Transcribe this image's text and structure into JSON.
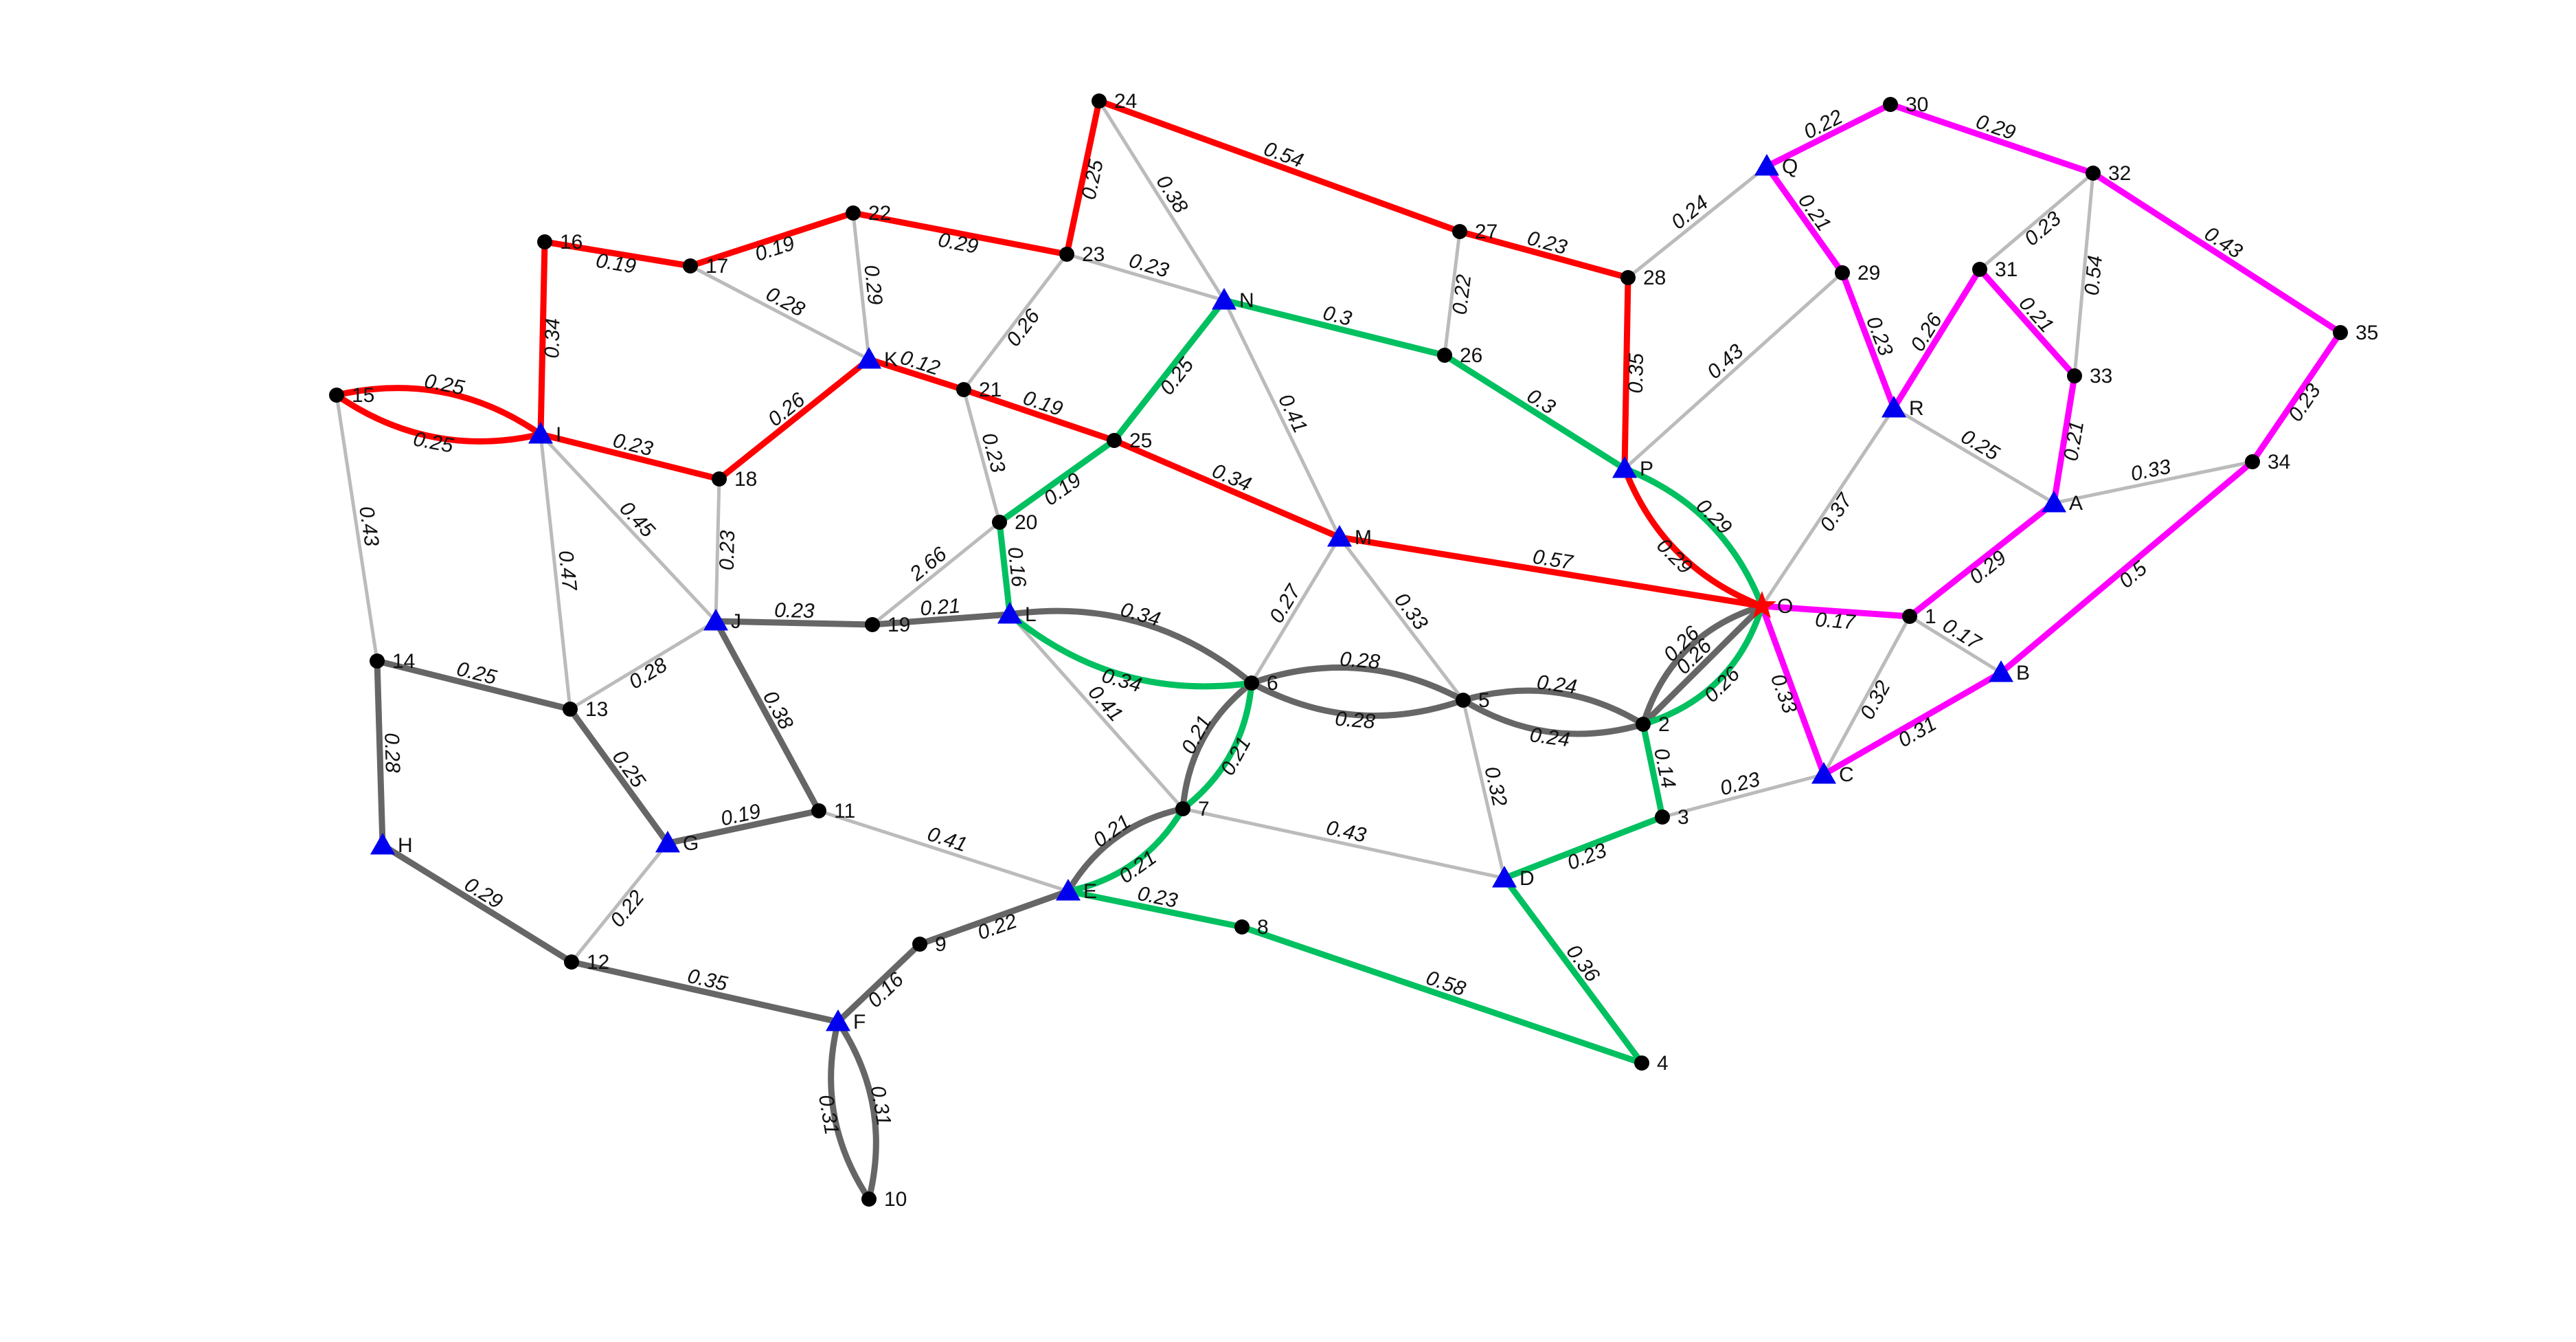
{
  "colors": {
    "background": "#ffffff",
    "edge_light": "#bbbbbb",
    "edge_dark": "#666666",
    "edge_red": "#ff0000",
    "edge_green": "#00c060",
    "edge_magenta": "#ff00ff",
    "node_dot": "#000000",
    "node_triangle": "#0000ee",
    "node_star": "#ff0000"
  },
  "nodes": [
    {
      "id": "24",
      "shape": "dot"
    },
    {
      "id": "27",
      "shape": "dot"
    },
    {
      "id": "28",
      "shape": "dot"
    },
    {
      "id": "23",
      "shape": "dot"
    },
    {
      "id": "22",
      "shape": "dot"
    },
    {
      "id": "17",
      "shape": "dot"
    },
    {
      "id": "16",
      "shape": "dot"
    },
    {
      "id": "15",
      "shape": "dot"
    },
    {
      "id": "I",
      "shape": "triangle"
    },
    {
      "id": "K",
      "shape": "triangle"
    },
    {
      "id": "21",
      "shape": "dot"
    },
    {
      "id": "18",
      "shape": "dot"
    },
    {
      "id": "N",
      "shape": "triangle"
    },
    {
      "id": "26",
      "shape": "dot"
    },
    {
      "id": "25",
      "shape": "dot"
    },
    {
      "id": "20",
      "shape": "dot"
    },
    {
      "id": "M",
      "shape": "triangle"
    },
    {
      "id": "P",
      "shape": "triangle"
    },
    {
      "id": "O",
      "shape": "star"
    },
    {
      "id": "Q",
      "shape": "triangle"
    },
    {
      "id": "30",
      "shape": "dot"
    },
    {
      "id": "32",
      "shape": "dot"
    },
    {
      "id": "29",
      "shape": "dot"
    },
    {
      "id": "31",
      "shape": "dot"
    },
    {
      "id": "33",
      "shape": "dot"
    },
    {
      "id": "R",
      "shape": "triangle"
    },
    {
      "id": "35",
      "shape": "dot"
    },
    {
      "id": "34",
      "shape": "dot"
    },
    {
      "id": "A",
      "shape": "triangle"
    },
    {
      "id": "1",
      "shape": "dot"
    },
    {
      "id": "B",
      "shape": "triangle"
    },
    {
      "id": "C",
      "shape": "triangle"
    },
    {
      "id": "J",
      "shape": "triangle"
    },
    {
      "id": "19",
      "shape": "dot"
    },
    {
      "id": "L",
      "shape": "triangle"
    },
    {
      "id": "14",
      "shape": "dot"
    },
    {
      "id": "13",
      "shape": "dot"
    },
    {
      "id": "6",
      "shape": "dot"
    },
    {
      "id": "5",
      "shape": "dot"
    },
    {
      "id": "2",
      "shape": "dot"
    },
    {
      "id": "3",
      "shape": "dot"
    },
    {
      "id": "11",
      "shape": "dot"
    },
    {
      "id": "G",
      "shape": "triangle"
    },
    {
      "id": "H",
      "shape": "triangle"
    },
    {
      "id": "7",
      "shape": "dot"
    },
    {
      "id": "E",
      "shape": "triangle"
    },
    {
      "id": "D",
      "shape": "triangle"
    },
    {
      "id": "8",
      "shape": "dot"
    },
    {
      "id": "9",
      "shape": "dot"
    },
    {
      "id": "12",
      "shape": "dot"
    },
    {
      "id": "F",
      "shape": "triangle"
    },
    {
      "id": "4",
      "shape": "dot"
    },
    {
      "id": "10",
      "shape": "dot"
    }
  ],
  "edges": [
    {
      "a": "24",
      "b": "27",
      "label": "0.54",
      "color": "red"
    },
    {
      "a": "27",
      "b": "28",
      "label": "0.23",
      "color": "red"
    },
    {
      "a": "28",
      "b": "P",
      "label": "0.35",
      "color": "red"
    },
    {
      "a": "24",
      "b": "23",
      "label": "0.25",
      "color": "red"
    },
    {
      "a": "23",
      "b": "22",
      "label": "0.29",
      "color": "red"
    },
    {
      "a": "22",
      "b": "17",
      "label": "0.19",
      "color": "red"
    },
    {
      "a": "17",
      "b": "16",
      "label": "0.19",
      "color": "red"
    },
    {
      "a": "16",
      "b": "I",
      "label": "0.34",
      "color": "red"
    },
    {
      "a": "15",
      "b": "I",
      "label": "0.25",
      "color": "red",
      "curve": 1
    },
    {
      "a": "15",
      "b": "I",
      "label": "0.25",
      "color": "red",
      "curve": -1
    },
    {
      "a": "I",
      "b": "18",
      "label": "0.23",
      "color": "red"
    },
    {
      "a": "18",
      "b": "K",
      "label": "0.26",
      "color": "red"
    },
    {
      "a": "K",
      "b": "21",
      "label": "0.12",
      "color": "red"
    },
    {
      "a": "21",
      "b": "25",
      "label": "0.19",
      "color": "red"
    },
    {
      "a": "25",
      "b": "M",
      "label": "0.34",
      "color": "red"
    },
    {
      "a": "M",
      "b": "O",
      "label": "0.57",
      "color": "red"
    },
    {
      "a": "P",
      "b": "O",
      "label": "0.29",
      "color": "red",
      "curve": 1
    },
    {
      "a": "P",
      "b": "O",
      "label": "0.29",
      "color": "green",
      "curve": -1
    },
    {
      "a": "24",
      "b": "N",
      "label": "0.38",
      "color": "light"
    },
    {
      "a": "27",
      "b": "26",
      "label": "0.22",
      "color": "light"
    },
    {
      "a": "23",
      "b": "N",
      "label": "0.23",
      "color": "light"
    },
    {
      "a": "22",
      "b": "K",
      "label": "0.29",
      "color": "light"
    },
    {
      "a": "17",
      "b": "K",
      "label": "0.28",
      "color": "light"
    },
    {
      "a": "23",
      "b": "21",
      "label": "0.26",
      "color": "light"
    },
    {
      "a": "21",
      "b": "20",
      "label": "0.23",
      "color": "light"
    },
    {
      "a": "N",
      "b": "26",
      "label": "0.3",
      "color": "green"
    },
    {
      "a": "26",
      "b": "P",
      "label": "0.3",
      "color": "green"
    },
    {
      "a": "N",
      "b": "25",
      "label": "0.25",
      "color": "green"
    },
    {
      "a": "25",
      "b": "20",
      "label": "0.19",
      "color": "green"
    },
    {
      "a": "20",
      "b": "L",
      "label": "0.16",
      "color": "green"
    },
    {
      "a": "N",
      "b": "M",
      "label": "0.41",
      "color": "light"
    },
    {
      "a": "28",
      "b": "Q",
      "label": "0.24",
      "color": "light"
    },
    {
      "a": "P",
      "b": "29",
      "label": "0.43",
      "color": "light"
    },
    {
      "a": "Q",
      "b": "30",
      "label": "0.22",
      "color": "magenta"
    },
    {
      "a": "30",
      "b": "32",
      "label": "0.29",
      "color": "magenta"
    },
    {
      "a": "32",
      "b": "35",
      "label": "0.43",
      "color": "magenta"
    },
    {
      "a": "35",
      "b": "34",
      "label": "0.23",
      "color": "magenta"
    },
    {
      "a": "34",
      "b": "B",
      "label": "0.5",
      "color": "magenta"
    },
    {
      "a": "B",
      "b": "C",
      "label": "0.31",
      "color": "magenta"
    },
    {
      "a": "C",
      "b": "O",
      "label": "0.33",
      "color": "magenta"
    },
    {
      "a": "Q",
      "b": "29",
      "label": "0.21",
      "color": "magenta"
    },
    {
      "a": "29",
      "b": "R",
      "label": "0.23",
      "color": "magenta"
    },
    {
      "a": "R",
      "b": "31",
      "label": "0.26",
      "color": "magenta"
    },
    {
      "a": "31",
      "b": "33",
      "label": "0.21",
      "color": "magenta"
    },
    {
      "a": "33",
      "b": "A",
      "label": "0.21",
      "color": "magenta"
    },
    {
      "a": "A",
      "b": "1",
      "label": "0.29",
      "color": "magenta"
    },
    {
      "a": "1",
      "b": "O",
      "label": "0.17",
      "color": "magenta"
    },
    {
      "a": "32",
      "b": "31",
      "label": "0.23",
      "color": "light"
    },
    {
      "a": "32",
      "b": "33",
      "label": "0.54",
      "color": "light"
    },
    {
      "a": "R",
      "b": "A",
      "label": "0.25",
      "color": "light"
    },
    {
      "a": "A",
      "b": "34",
      "label": "0.33",
      "color": "light"
    },
    {
      "a": "R",
      "b": "O",
      "label": "0.37",
      "color": "light"
    },
    {
      "a": "1",
      "b": "B",
      "label": "0.17",
      "color": "light"
    },
    {
      "a": "1",
      "b": "C",
      "label": "0.32",
      "color": "light"
    },
    {
      "a": "15",
      "b": "14",
      "label": "0.43",
      "color": "light"
    },
    {
      "a": "I",
      "b": "13",
      "label": "0.47",
      "color": "light"
    },
    {
      "a": "I",
      "b": "J",
      "label": "0.45",
      "color": "light"
    },
    {
      "a": "18",
      "b": "J",
      "label": "0.23",
      "color": "light"
    },
    {
      "a": "J",
      "b": "19",
      "label": "0.23",
      "color": "dark"
    },
    {
      "a": "19",
      "b": "L",
      "label": "0.21",
      "color": "dark"
    },
    {
      "a": "19",
      "b": "20",
      "label": "2.66",
      "color": "light"
    },
    {
      "a": "J",
      "b": "13",
      "label": "0.28",
      "color": "light"
    },
    {
      "a": "J",
      "b": "11",
      "label": "0.38",
      "color": "dark"
    },
    {
      "a": "14",
      "b": "13",
      "label": "0.25",
      "color": "dark"
    },
    {
      "a": "13",
      "b": "G",
      "label": "0.25",
      "color": "dark"
    },
    {
      "a": "G",
      "b": "11",
      "label": "0.19",
      "color": "dark"
    },
    {
      "a": "14",
      "b": "H",
      "label": "0.28",
      "color": "dark"
    },
    {
      "a": "H",
      "b": "12",
      "label": "0.29",
      "color": "dark"
    },
    {
      "a": "G",
      "b": "12",
      "label": "0.22",
      "color": "light"
    },
    {
      "a": "12",
      "b": "F",
      "label": "0.35",
      "color": "dark"
    },
    {
      "a": "11",
      "b": "E",
      "label": "0.41",
      "color": "light"
    },
    {
      "a": "L",
      "b": "6",
      "label": "0.34",
      "color": "dark",
      "curve": -1
    },
    {
      "a": "L",
      "b": "6",
      "label": "0.34",
      "color": "green",
      "curve": 1
    },
    {
      "a": "L",
      "b": "7",
      "label": "0.41",
      "color": "light"
    },
    {
      "a": "6",
      "b": "M",
      "label": "0.27",
      "color": "light"
    },
    {
      "a": "M",
      "b": "5",
      "label": "0.33",
      "color": "light"
    },
    {
      "a": "6",
      "b": "5",
      "label": "0.28",
      "color": "dark",
      "curve": -1
    },
    {
      "a": "6",
      "b": "5",
      "label": "0.28",
      "color": "dark",
      "curve": 1
    },
    {
      "a": "5",
      "b": "2",
      "label": "0.24",
      "color": "dark",
      "curve": -1
    },
    {
      "a": "5",
      "b": "2",
      "label": "0.24",
      "color": "dark",
      "curve": 1
    },
    {
      "a": "2",
      "b": "O",
      "label": "0.26",
      "color": "green",
      "curve": 1.2
    },
    {
      "a": "2",
      "b": "O",
      "label": "0.26",
      "color": "dark",
      "curve": 0
    },
    {
      "a": "2",
      "b": "O",
      "label": "0.26",
      "color": "dark",
      "curve": -1.2
    },
    {
      "a": "2",
      "b": "3",
      "label": "0.14",
      "color": "green"
    },
    {
      "a": "3",
      "b": "C",
      "label": "0.23",
      "color": "light"
    },
    {
      "a": "3",
      "b": "D",
      "label": "0.23",
      "color": "green"
    },
    {
      "a": "5",
      "b": "D",
      "label": "0.32",
      "color": "light"
    },
    {
      "a": "D",
      "b": "4",
      "label": "0.36",
      "color": "green"
    },
    {
      "a": "7",
      "b": "D",
      "label": "0.43",
      "color": "light"
    },
    {
      "a": "6",
      "b": "7",
      "label": "0.21",
      "color": "dark",
      "curve": 1
    },
    {
      "a": "6",
      "b": "7",
      "label": "0.21",
      "color": "green",
      "curve": -1
    },
    {
      "a": "7",
      "b": "E",
      "label": "0.21",
      "color": "dark",
      "curve": 1
    },
    {
      "a": "7",
      "b": "E",
      "label": "0.21",
      "color": "green",
      "curve": -1
    },
    {
      "a": "E",
      "b": "8",
      "label": "0.23",
      "color": "green"
    },
    {
      "a": "8",
      "b": "4",
      "label": "0.58",
      "color": "green"
    },
    {
      "a": "E",
      "b": "9",
      "label": "0.22",
      "color": "dark"
    },
    {
      "a": "9",
      "b": "F",
      "label": "0.16",
      "color": "dark"
    },
    {
      "a": "F",
      "b": "10",
      "label": "0.31",
      "color": "dark",
      "curve": 1
    },
    {
      "a": "F",
      "b": "10",
      "label": "0.31",
      "color": "dark",
      "curve": -1
    }
  ]
}
